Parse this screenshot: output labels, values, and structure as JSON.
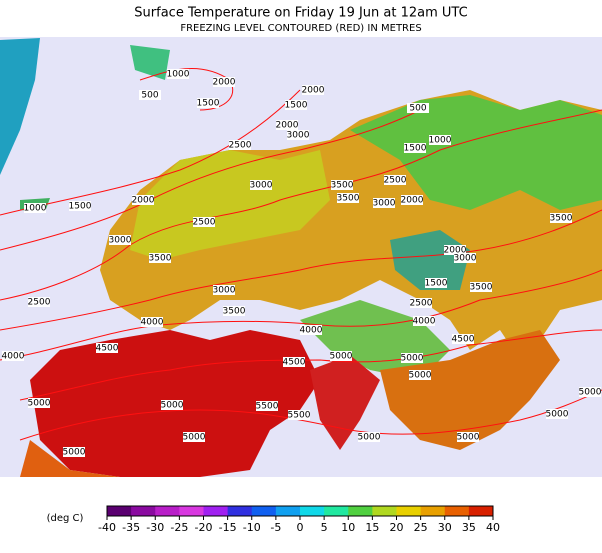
{
  "header": {
    "title": "Surface Temperature on Friday 19 Jun at 12am UTC",
    "subtitle": "FREEZING LEVEL CONTOURED (RED) IN METRES"
  },
  "map": {
    "contour_labels": [
      1000,
      2000,
      500,
      1500,
      2000,
      1500,
      2000,
      3000,
      500,
      1000,
      1500,
      2500,
      3000,
      3500,
      3500,
      2500,
      2000,
      3000,
      1000,
      1500,
      2000,
      2500,
      3000,
      3500,
      3000,
      3500,
      2500,
      4000,
      4000,
      4000,
      4500,
      2500,
      1500,
      2000,
      3000,
      3500,
      3500,
      4000,
      4500,
      4500,
      5000,
      5000,
      5000,
      5000,
      5000,
      5500,
      5500,
      5000,
      5000,
      5000,
      5000,
      5000,
      5000
    ]
  },
  "colorbar": {
    "label": "(deg C)",
    "ticks": [
      -40,
      -35,
      -30,
      -25,
      -20,
      -15,
      -10,
      -5,
      0,
      5,
      10,
      15,
      20,
      25,
      30,
      35,
      40
    ],
    "colors": [
      "#5a0070",
      "#8a0aa0",
      "#b81ec8",
      "#d838e0",
      "#a020f0",
      "#3030e0",
      "#1060f0",
      "#10a0f0",
      "#10d8e8",
      "#20e8a0",
      "#50d040",
      "#b0d820",
      "#e8d000",
      "#e8a000",
      "#e86000",
      "#d82000"
    ]
  }
}
